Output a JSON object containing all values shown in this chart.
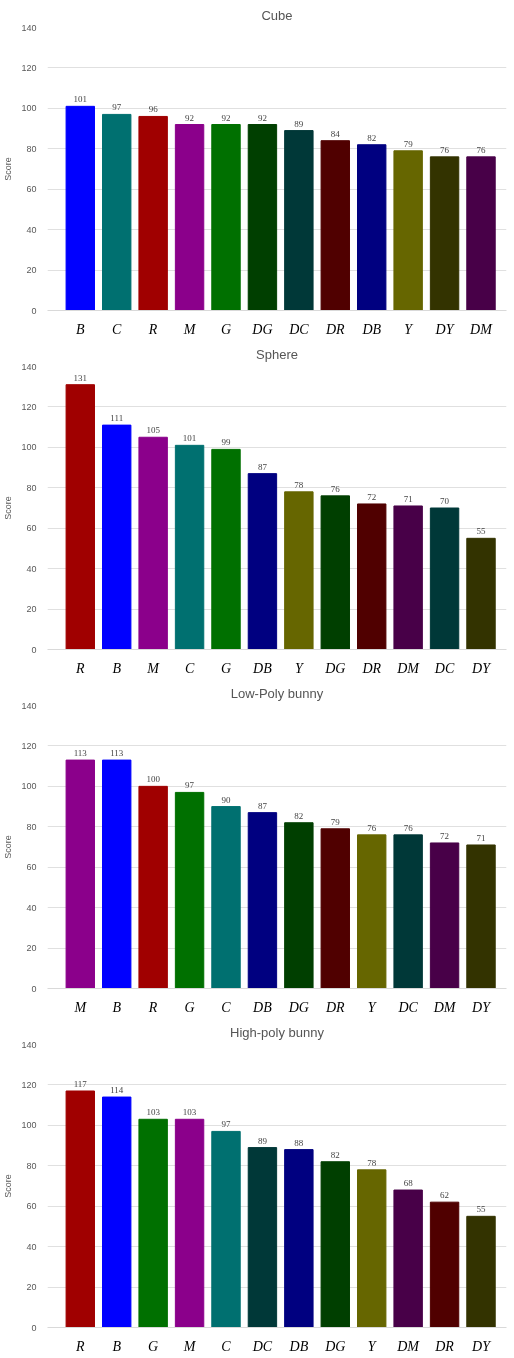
{
  "chart_data": [
    {
      "type": "bar",
      "title": "Cube",
      "ylabel": "Score",
      "categories": [
        "B",
        "C",
        "R",
        "M",
        "G",
        "DG",
        "DC",
        "DR",
        "DB",
        "Y",
        "DY",
        "DM"
      ],
      "values": [
        101,
        97,
        96,
        92,
        92,
        92,
        89,
        84,
        82,
        79,
        76,
        76
      ],
      "colors": [
        "#0000ff",
        "#007070",
        "#a00000",
        "#8b008b",
        "#007000",
        "#003f00",
        "#003838",
        "#500000",
        "#000080",
        "#666600",
        "#333300",
        "#480048"
      ],
      "ylim": [
        0,
        140
      ],
      "yticks": [
        0,
        20,
        40,
        60,
        80,
        100,
        120,
        140
      ],
      "grid": "y",
      "data_labels": true
    },
    {
      "type": "bar",
      "title": "Sphere",
      "ylabel": "Score",
      "categories": [
        "R",
        "B",
        "M",
        "C",
        "G",
        "DB",
        "Y",
        "DG",
        "DR",
        "DM",
        "DC",
        "DY"
      ],
      "values": [
        131,
        111,
        105,
        101,
        99,
        87,
        78,
        76,
        72,
        71,
        70,
        55
      ],
      "colors": [
        "#a00000",
        "#0000ff",
        "#8b008b",
        "#007070",
        "#007000",
        "#000080",
        "#666600",
        "#003f00",
        "#500000",
        "#480048",
        "#003838",
        "#333300"
      ],
      "ylim": [
        0,
        140
      ],
      "yticks": [
        0,
        20,
        40,
        60,
        80,
        100,
        120,
        140
      ],
      "grid": "y",
      "data_labels": true
    },
    {
      "type": "bar",
      "title": "Low-Poly bunny",
      "ylabel": "Score",
      "categories": [
        "M",
        "B",
        "R",
        "G",
        "C",
        "DB",
        "DG",
        "DR",
        "Y",
        "DC",
        "DM",
        "DY"
      ],
      "values": [
        113,
        113,
        100,
        97,
        90,
        87,
        82,
        79,
        76,
        76,
        72,
        71
      ],
      "colors": [
        "#8b008b",
        "#0000ff",
        "#a00000",
        "#007000",
        "#007070",
        "#000080",
        "#003f00",
        "#500000",
        "#666600",
        "#003838",
        "#480048",
        "#333300"
      ],
      "ylim": [
        0,
        140
      ],
      "yticks": [
        0,
        20,
        40,
        60,
        80,
        100,
        120,
        140
      ],
      "grid": "y",
      "data_labels": true
    },
    {
      "type": "bar",
      "title": "High-poly bunny",
      "ylabel": "Score",
      "categories": [
        "R",
        "B",
        "G",
        "M",
        "C",
        "DC",
        "DB",
        "DG",
        "Y",
        "DM",
        "DR",
        "DY"
      ],
      "values": [
        117,
        114,
        103,
        103,
        97,
        89,
        88,
        82,
        78,
        68,
        62,
        55
      ],
      "colors": [
        "#a00000",
        "#0000ff",
        "#007000",
        "#8b008b",
        "#007070",
        "#003838",
        "#000080",
        "#003f00",
        "#666600",
        "#480048",
        "#500000",
        "#333300"
      ],
      "ylim": [
        0,
        140
      ],
      "yticks": [
        0,
        20,
        40,
        60,
        80,
        100,
        120,
        140
      ],
      "grid": "y",
      "data_labels": true
    }
  ]
}
